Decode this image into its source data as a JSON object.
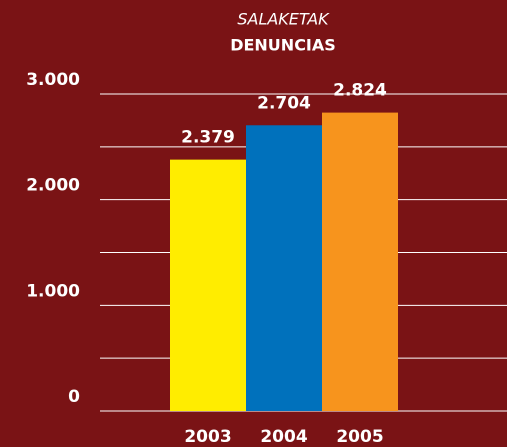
{
  "chart_data": {
    "type": "bar",
    "title": "SALAKETAK",
    "subtitle": "DENUNCIAS",
    "categories": [
      "2003",
      "2004",
      "2005"
    ],
    "values": [
      2379,
      2704,
      2824
    ],
    "value_labels": [
      "2.379",
      "2.704",
      "2.824"
    ],
    "colors": [
      "#ffed00",
      "#0071bc",
      "#f7941d"
    ],
    "ylim": [
      0,
      3000
    ],
    "yticks": [
      0,
      {
        "value": 1000,
        "label": "1.000"
      },
      {
        "value": 2000,
        "label": "2.000"
      },
      {
        "value": 3000,
        "label": "3.000"
      }
    ],
    "minor_yticks": [
      500,
      1500,
      2500
    ],
    "grid": true
  }
}
